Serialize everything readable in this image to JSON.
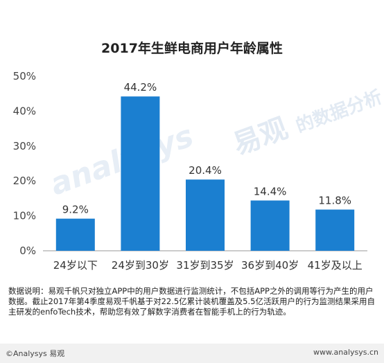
{
  "chart_data": {
    "type": "bar",
    "title": "2017年生鲜电商用户年龄属性",
    "categories": [
      "24岁以下",
      "24岁到30岁",
      "31岁到35岁",
      "36岁到40岁",
      "41岁及以上"
    ],
    "values": [
      9.2,
      44.2,
      20.4,
      14.4,
      11.8
    ],
    "data_labels": [
      "9.2%",
      "44.2%",
      "20.4%",
      "14.4%",
      "11.8%"
    ],
    "yticks": [
      0,
      10,
      20,
      30,
      40,
      50
    ],
    "ytick_labels": [
      "0%",
      "10%",
      "20%",
      "30%",
      "40%",
      "50%"
    ],
    "ylim": [
      0,
      50
    ],
    "bar_color": "#1b7fd0",
    "grid": false,
    "legend": "none"
  },
  "watermark": {
    "brand_en": "analysys",
    "brand_cn": "易观",
    "slogan": "的数据分析"
  },
  "note": "数据说明：易观千帆只对独立APP中的用户数据进行监测统计，不包括APP之外的调用等行为产生的用户数据。截止2017年第4季度易观千帆基于对22.5亿累计装机覆盖及5.5亿活跃用户的行为监测结果采用自主研发的enfoTech技术，帮助您有效了解数字消费者在智能手机上的行为轨迹。",
  "footer": {
    "copyright": "©Analysys 易观",
    "url": "www.analysys.cn"
  }
}
